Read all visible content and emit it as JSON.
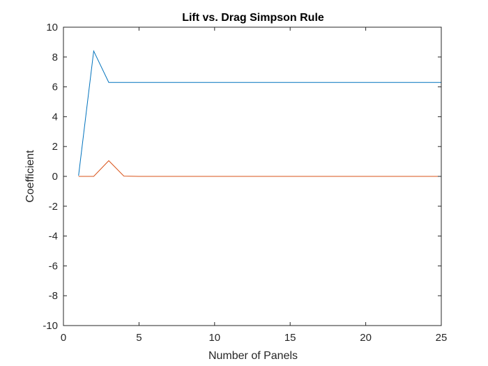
{
  "chart_data": {
    "type": "line",
    "title": "Lift vs. Drag Simpson Rule",
    "xlabel": "Number of Panels",
    "ylabel": "Coefficient",
    "xlim": [
      0,
      25
    ],
    "ylim": [
      -10,
      10
    ],
    "xticks": [
      0,
      5,
      10,
      15,
      20,
      25
    ],
    "yticks": [
      -10,
      -8,
      -6,
      -4,
      -2,
      0,
      2,
      4,
      6,
      8,
      10
    ],
    "grid": false,
    "x": [
      1,
      2,
      3,
      4,
      5,
      6,
      7,
      8,
      9,
      10,
      11,
      12,
      13,
      14,
      15,
      16,
      17,
      18,
      19,
      20,
      21,
      22,
      23,
      24,
      25
    ],
    "series": [
      {
        "color": "#0072BD",
        "values": [
          0.05,
          8.4,
          6.3,
          6.3,
          6.3,
          6.3,
          6.3,
          6.3,
          6.3,
          6.3,
          6.3,
          6.3,
          6.3,
          6.3,
          6.3,
          6.3,
          6.3,
          6.3,
          6.3,
          6.3,
          6.3,
          6.3,
          6.3,
          6.3,
          6.3
        ]
      },
      {
        "color": "#D95319",
        "values": [
          0.0,
          0.0,
          1.05,
          0.02,
          0.0,
          0.0,
          0.0,
          0.0,
          0.0,
          0.0,
          0.0,
          0.0,
          0.0,
          0.0,
          0.0,
          0.0,
          0.0,
          0.0,
          0.0,
          0.0,
          0.0,
          0.0,
          0.0,
          0.0,
          0.0
        ]
      }
    ]
  }
}
